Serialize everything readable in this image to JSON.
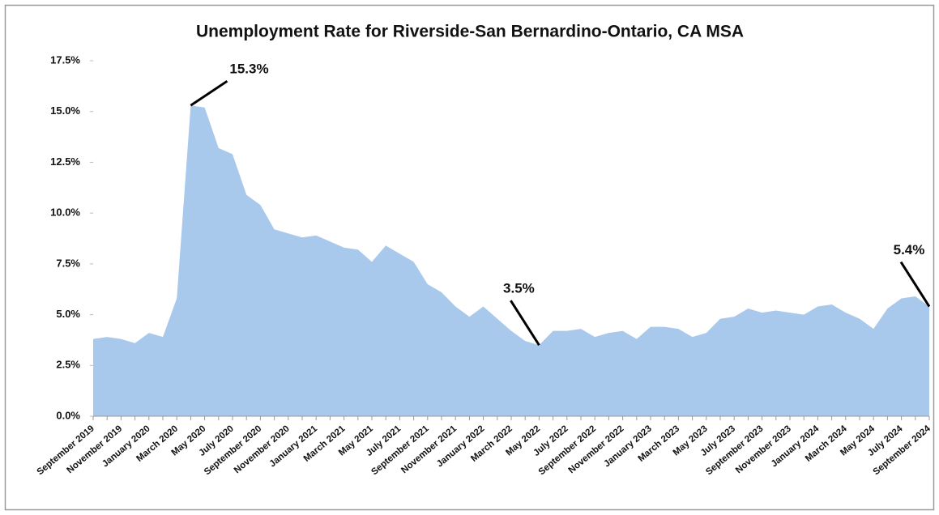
{
  "chart_data": {
    "type": "area",
    "title": "Unemployment Rate for Riverside-San Bernardino-Ontario, CA MSA",
    "categories": [
      "September 2019",
      null,
      "November 2019",
      null,
      "January 2020",
      null,
      "March 2020",
      null,
      "May 2020",
      null,
      "July 2020",
      null,
      "September 2020",
      null,
      "November 2020",
      null,
      "January 2021",
      null,
      "March 2021",
      null,
      "May 2021",
      null,
      "July 2021",
      null,
      "September 2021",
      null,
      "November 2021",
      null,
      "January 2022",
      null,
      "March 2022",
      null,
      "May 2022",
      null,
      "July 2022",
      null,
      "September 2022",
      null,
      "November 2022",
      null,
      "January 2023",
      null,
      "March 2023",
      null,
      "May 2023",
      null,
      "July 2023",
      null,
      "September 2023",
      null,
      "November 2023",
      null,
      "January 2024",
      null,
      "March 2024",
      null,
      "May 2024",
      null,
      "July 2024",
      null,
      "September 2024"
    ],
    "values": [
      3.8,
      3.9,
      3.8,
      3.6,
      4.1,
      3.9,
      5.8,
      15.3,
      15.2,
      13.2,
      12.9,
      10.9,
      10.4,
      9.2,
      9.0,
      8.8,
      8.9,
      8.6,
      8.3,
      8.2,
      7.6,
      8.4,
      8.0,
      7.6,
      6.5,
      6.1,
      5.4,
      4.9,
      5.4,
      4.8,
      4.2,
      3.7,
      3.5,
      4.2,
      4.2,
      4.3,
      3.9,
      4.1,
      4.2,
      3.8,
      4.4,
      4.4,
      4.3,
      3.9,
      4.1,
      4.8,
      4.9,
      5.3,
      5.1,
      5.2,
      5.1,
      5.0,
      5.4,
      5.5,
      5.1,
      4.8,
      4.3,
      5.3,
      5.8,
      5.9,
      5.4
    ],
    "value_labels": [
      null,
      null,
      null,
      null,
      null,
      null,
      null,
      "15.3%",
      null,
      null,
      null,
      null,
      null,
      null,
      null,
      null,
      null,
      null,
      null,
      null,
      null,
      null,
      null,
      null,
      null,
      null,
      null,
      null,
      null,
      null,
      null,
      null,
      "3.5%",
      null,
      null,
      null,
      null,
      null,
      null,
      null,
      null,
      null,
      null,
      null,
      null,
      null,
      null,
      null,
      null,
      null,
      null,
      null,
      null,
      null,
      null,
      null,
      null,
      null,
      null,
      null,
      "5.4%"
    ],
    "color": "#a9c9ec",
    "ylim": [
      0,
      17.5
    ],
    "yticks": [
      {
        "value": 0,
        "label": "0.0%"
      },
      {
        "value": 2.5,
        "label": "2.5%"
      },
      {
        "value": 5,
        "label": "5.0%"
      },
      {
        "value": 7.5,
        "label": "7.5%"
      },
      {
        "value": 10,
        "label": "10.0%"
      },
      {
        "value": 12.5,
        "label": "12.5%"
      },
      {
        "value": 15,
        "label": "15.0%"
      },
      {
        "value": 17.5,
        "label": "17.5%"
      }
    ],
    "grid": false
  }
}
